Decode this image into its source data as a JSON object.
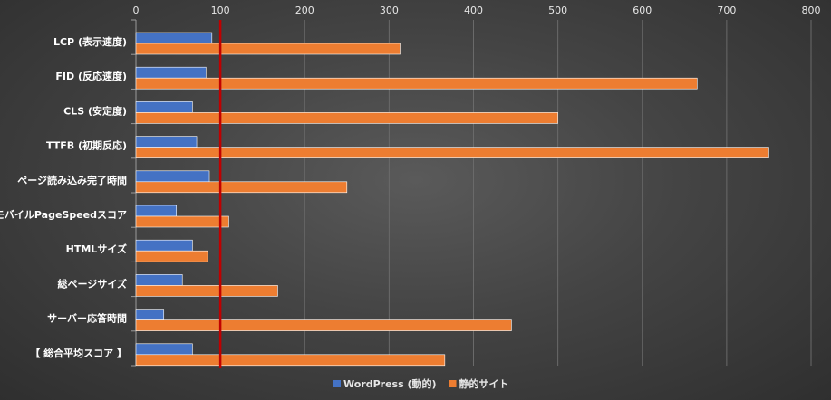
{
  "chart_data": {
    "type": "bar",
    "orientation": "horizontal",
    "categories": [
      "LCP (表示速度)",
      "FID (反応速度)",
      "CLS (安定度)",
      "TTFB (初期反応)",
      "ページ読み込み完了時間",
      "モバイルPageSpeedスコア",
      "HTMLサイズ",
      "総ページサイズ",
      "サーバー応答時間",
      "【 総合平均スコア 】"
    ],
    "series": [
      {
        "name": "WordPress (動的)",
        "color": "#4472c4",
        "values": [
          90,
          83,
          67,
          72,
          87,
          48,
          67,
          55,
          33,
          67
        ]
      },
      {
        "name": "静的サイト",
        "color": "#ed7d31",
        "values": [
          313,
          665,
          500,
          750,
          250,
          110,
          85,
          168,
          445,
          366
        ]
      }
    ],
    "xlim": [
      0,
      800
    ],
    "xticks": [
      "0",
      "100",
      "200",
      "300",
      "400",
      "500",
      "600",
      "700",
      "800"
    ],
    "x_axis_position": "top",
    "reference_line": {
      "value": 100,
      "color": "#c00000"
    },
    "grid": true,
    "legend_position": "bottom"
  }
}
